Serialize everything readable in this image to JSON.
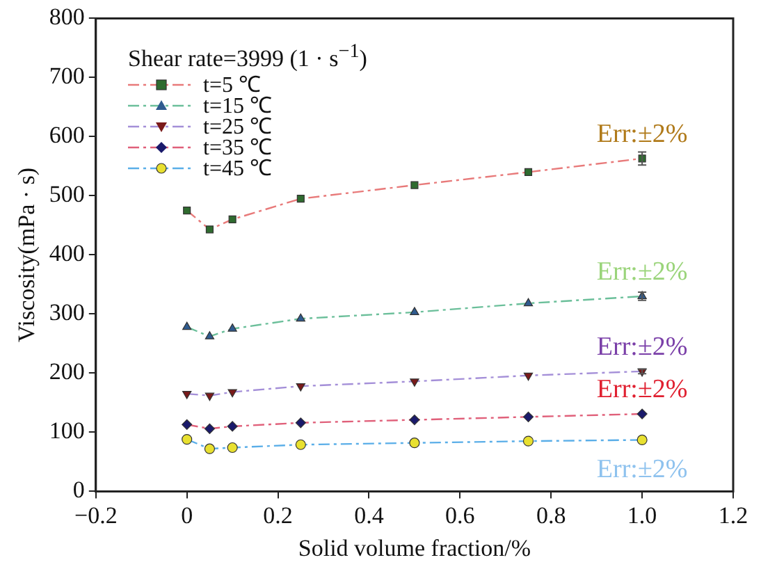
{
  "chart_data": {
    "type": "line",
    "xlabel": "Solid volume fraction/%",
    "ylabel": "Viscosity(mPa · s)",
    "legend_title": "Shear rate=3999 (1 · s$^{−1}$)",
    "legend": "top left",
    "grid": false,
    "line_style": "dashed",
    "xlim": [
      -0.2,
      1.2
    ],
    "xticks": [
      {
        "value": -0.2,
        "label": "−0.2"
      },
      0,
      0.2,
      0.4,
      0.6,
      0.8,
      {
        "value": 1,
        "label": "1.0"
      },
      1.2
    ],
    "ylim": [
      0,
      800
    ],
    "yticks": [
      0,
      100,
      200,
      300,
      400,
      500,
      600,
      700,
      800
    ],
    "x": [
      0,
      0.05,
      0.1,
      0.25,
      0.5,
      0.75,
      1.0
    ],
    "series": [
      {
        "name": "t=5 ℃",
        "color": "#e87a7a",
        "marker": "square",
        "values": [
          475,
          443,
          460,
          495,
          518,
          540,
          563
        ],
        "errors": [
          null,
          null,
          null,
          null,
          null,
          null,
          11
        ]
      },
      {
        "name": "t=15 ℃",
        "color": "#6bbf9a",
        "marker": "triangle",
        "values": [
          278,
          262,
          275,
          292,
          303,
          318,
          330
        ],
        "errors": [
          null,
          null,
          null,
          null,
          null,
          null,
          7
        ]
      },
      {
        "name": "t=25 ℃",
        "color": "#a48fd8",
        "marker": "triangle-down",
        "values": [
          165,
          162,
          168,
          178,
          186,
          196,
          203
        ],
        "errors": [
          null,
          null,
          null,
          null,
          null,
          null,
          4
        ]
      },
      {
        "name": "t=35 ℃",
        "color": "#e0607a",
        "marker": "diamond",
        "values": [
          113,
          106,
          110,
          116,
          121,
          126,
          131
        ]
      },
      {
        "name": "t=45 ℃",
        "color": "#5aaee8",
        "marker": "circle",
        "values": [
          88,
          72,
          74,
          79,
          82,
          85,
          87
        ]
      }
    ],
    "annotations": [
      "Err:±2%",
      "Err:±2%",
      "Err:±2%",
      "Err:±2%",
      "Err:±2%"
    ]
  }
}
